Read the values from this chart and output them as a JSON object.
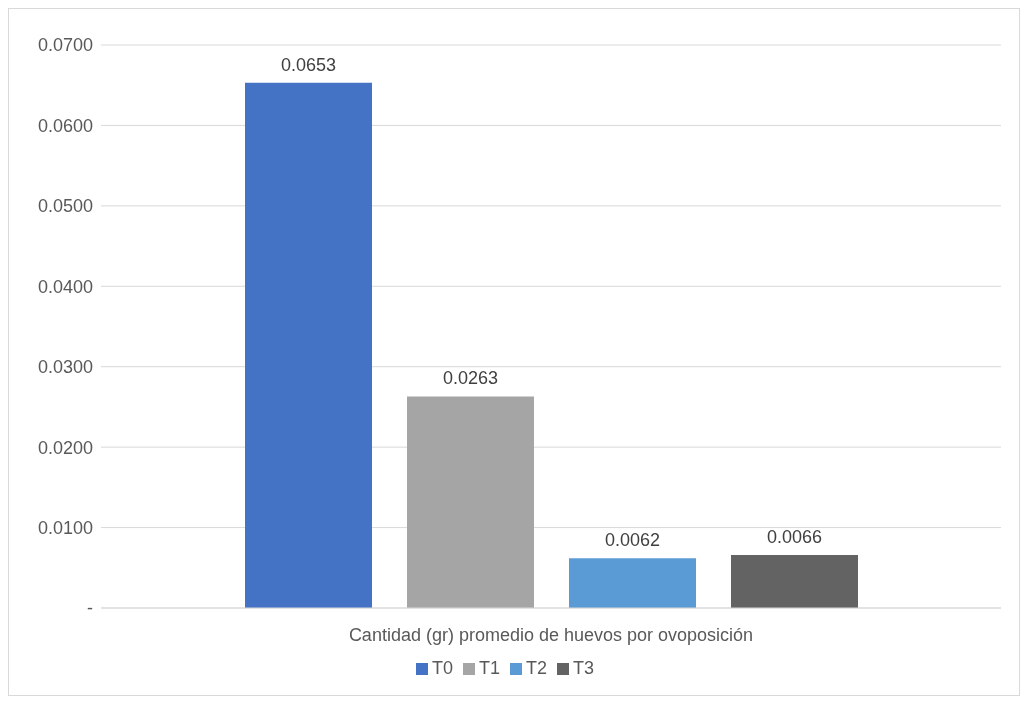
{
  "chart_data": {
    "type": "bar",
    "categories": [
      "Cantidad (gr) promedio de huevos por ovoposición"
    ],
    "series": [
      {
        "name": "T0",
        "color": "#4472c4",
        "values": [
          0.0653
        ]
      },
      {
        "name": "T1",
        "color": "#a5a5a5",
        "values": [
          0.0263
        ]
      },
      {
        "name": "T2",
        "color": "#5b9bd5",
        "values": [
          0.0062
        ]
      },
      {
        "name": "T3",
        "color": "#636363",
        "values": [
          0.0066
        ]
      }
    ],
    "ylim": [
      0,
      0.07
    ],
    "yticks": [
      {
        "value": 0,
        "label": "-"
      },
      {
        "value": 0.01,
        "label": "0.0100"
      },
      {
        "value": 0.02,
        "label": "0.0200"
      },
      {
        "value": 0.03,
        "label": "0.0300"
      },
      {
        "value": 0.04,
        "label": "0.0400"
      },
      {
        "value": 0.05,
        "label": "0.0500"
      },
      {
        "value": 0.06,
        "label": "0.0600"
      },
      {
        "value": 0.07,
        "label": "0.0700"
      }
    ],
    "grid": "y",
    "legend": "bottom",
    "data_labels": true
  }
}
